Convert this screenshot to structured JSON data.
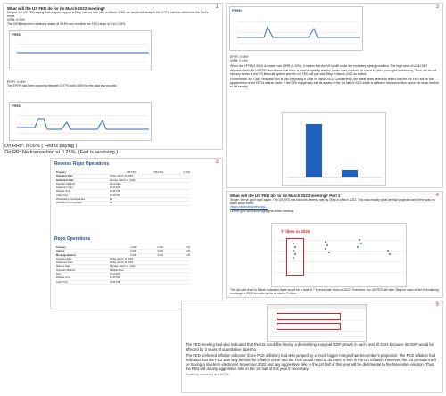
{
  "panel1": {
    "number": "1",
    "title": "What will the US FED do for its March 2022 meeting?",
    "intro": "Despite the US FED saying that a liquid support a 25bp interest rate hike in March 2022, we would still analyse the 3 FED rates to determine the Fed's move.",
    "iorb": "IORB: 0.15%",
    "iorb_note": "The IORB has been relatively stable at 0.15% and is within the FED range of 0 to 0.25%.",
    "effr": "EFFR: 0.08%",
    "effr_note": "The EFFR had been hovering between 0.07% and 0.08% for the past few months.",
    "onrrp": "On RRP: 0.05% ( Fed is paying )",
    "onrp": "On RP: No transaction at 0.25%. (Fed is receiving.)",
    "fred_logo": "FRED"
  },
  "panel2": {
    "number": "2",
    "reverse_title": "Reverse Repo Operations",
    "repo_title": "Repo Operations",
    "reverse_rows": [
      [
        "Treasury",
        "1,557.823",
        "1,557.823",
        "0.05%"
      ],
      [
        "Operation Date",
        "Friday, March 11, 2022",
        "",
        ""
      ],
      [
        "Settlement Date",
        "Monday, March 14, 2022",
        "",
        ""
      ],
      [
        "Operation Method",
        "Fixed Rate",
        "",
        ""
      ],
      [
        "Settlement Type",
        "Overnight",
        "",
        ""
      ],
      [
        "Release Time",
        "12:46 PM",
        "",
        ""
      ],
      [
        "Close Time",
        "01:15 PM",
        "",
        ""
      ],
      [
        "Participating Counterparties",
        "82",
        "",
        ""
      ],
      [
        "Accepted Counterparties",
        "82",
        "",
        ""
      ]
    ],
    "repo_rows": [
      [
        "Treasury",
        "0.000",
        "0.000",
        "0.25"
      ],
      [
        "Agency",
        "0.000",
        "0.000",
        "0.25"
      ],
      [
        "Mortgage-Backed",
        "0.000",
        "0.000",
        "0.25"
      ],
      [
        "Operation Date",
        "Friday, March 11, 2022",
        "",
        ""
      ],
      [
        "Settlement Date",
        "Friday, March 11, 2022",
        "",
        ""
      ],
      [
        "Maturity Date",
        "Monday, March 14, 2022",
        "",
        ""
      ],
      [
        "Operation Method",
        "Multiple-Price",
        "",
        ""
      ],
      [
        "Term",
        "Overnight",
        "",
        ""
      ],
      [
        "Release Time",
        "01:45 PM",
        "",
        ""
      ],
      [
        "Close Time",
        "01:45 PM",
        "",
        ""
      ]
    ]
  },
  "panel3": {
    "number": "3",
    "effr": "EFFR: 0.08%",
    "iorb": "IORB: 0.15%",
    "para1": "When the EFFR (0.08%) is lesser than IORB (0.15%), it means that the US is still under the monetary easing condition. The high cash of US$1.5BT deposited with the US FED also shows that there is excess liquidity and the banks have nowhere to invest in (after prolonged lockdowns). Thus, we do not see any stress in the US financial system and the US FED will just hike 25bp in March 2022 as stated.",
    "para2": "Furthermore, the CME Fedwatch tool is also projecting a 25bp in March 2022. Concurrently, the latest news seems to reflect that the US FED will be the appointment of the FED's search week. If the FED happens to sell its assets in the 1st half of 2022 which is different, this would also cause the stock market to fall heavily."
  },
  "panel4": {
    "number": "4",
    "title": "What will the US FED do for its March 2022 meeting? Part 2",
    "para1": "Singer: We've got it right again. The US FED has hiked its interest rate by 25bp in March 2022. This was exactly what we had projected and there was no black swan event.",
    "link": "https://www.stlouisfed.org/...",
    "para2": "Let me give you some highlights of the meeting.",
    "annot": "7 hikes in 2022",
    "foot": "The dot plot chart in March indicated there would be a total of 7 interest rate hikes in 2022. Therefore, the US FED will hike 25bp for each of the 6 remaining meetings in 2022 to make up for a total of 7 hikes."
  },
  "panel5": {
    "number": "5",
    "para1": "The FED meeting had also indicated that the US would be having a diminishing marginal GDP growth in each year till 2024 because its GDP would be affected by 3 years of quantitative tapering.",
    "para2": "The FED preferred inflation indicator (Core PCE inflation) had also jumped by a much bigger margin than December's projection. The PCE inflation had indicated that the FED was way behind the inflation curve and the FED would need to do more to rein in the US inflation. However, the US president will be having a mid-term election in November 2022 and any aggressive hike in the 1st half of this year will be detrimental to the November election. Thus, the FED will do any aggressive hike in the 1st half of this year if necessary.",
    "foot": "Posted by Investor ● at 6:45 PM"
  }
}
